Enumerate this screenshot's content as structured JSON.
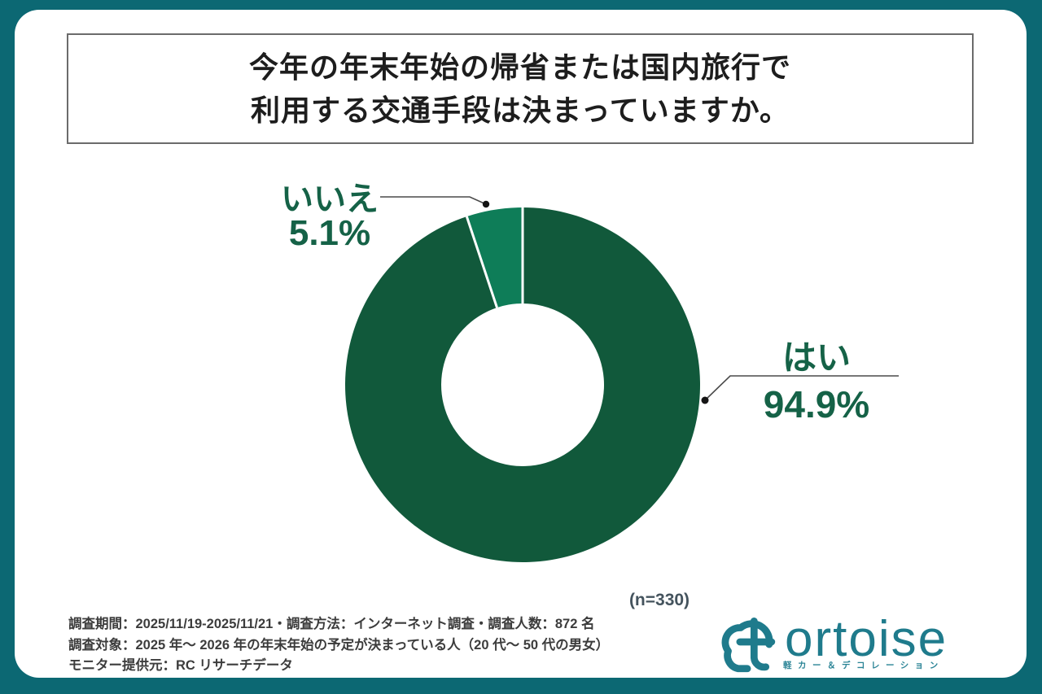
{
  "title": {
    "line1": "今年の年末年始の帰省または国内旅行で",
    "line2": "利用する交通手段は決まっていますか。"
  },
  "chart_data": {
    "type": "pie",
    "donut": true,
    "title": "今年の年末年始の帰省または国内旅行で利用する交通手段は決まっていますか。",
    "categories": [
      "はい",
      "いいえ"
    ],
    "values": [
      94.9,
      5.1
    ],
    "unit": "%",
    "colors": [
      "#11593B",
      "#0E7D58"
    ],
    "start_angle_deg": 0,
    "direction": "clockwise",
    "inner_radius_ratio": 0.46,
    "sample_note": "(n=330)",
    "legend_position": "callout-labels"
  },
  "slice_labels": {
    "yes": {
      "name": "はい",
      "value": "94.9%"
    },
    "no": {
      "name": "いいえ",
      "value": "5.1%"
    }
  },
  "n_note": "(n=330)",
  "footer": {
    "line1": "調査期間：2025/11/19-2025/11/21・調査方法：インターネット調査・調査人数：872 名",
    "line2": "調査対象：2025 年～ 2026 年の年末年始の予定が決まっている人（20 代～ 50 代の男女）",
    "line3": "モニター提供元：RC リサーチデータ"
  },
  "logo": {
    "text": "ortoise",
    "tagline": "軽カー＆デコレーション",
    "color": "#1f7b8c"
  },
  "colors": {
    "frame": "#0c6873",
    "panel": "#ffffff",
    "slice_yes": "#11593B",
    "slice_no": "#0E7D58",
    "label_green": "#156247",
    "title_text": "#1d1d1d",
    "leader_line": "#4a4a4a"
  }
}
